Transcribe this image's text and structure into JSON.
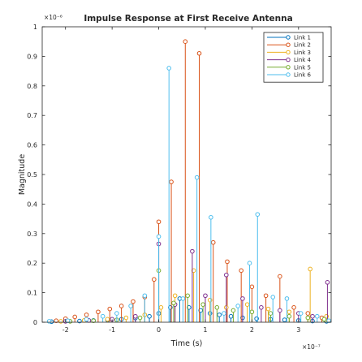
{
  "chart_data": {
    "type": "stem",
    "title": "Impulse Response at First Receive Antenna",
    "xlabel": "Time (s)",
    "ylabel": "Magnitude",
    "x_exponent_label": "×10⁻⁷",
    "y_exponent_label": "×10⁻⁶",
    "x_scale": 1e-07,
    "y_scale": 1e-06,
    "xlim": [
      -2.5,
      3.7
    ],
    "ylim": [
      0,
      1
    ],
    "x_ticks": [
      -2,
      -1,
      0,
      1,
      2,
      3
    ],
    "y_ticks": [
      0,
      0.1,
      0.2,
      0.3,
      0.4,
      0.5,
      0.6,
      0.7,
      0.8,
      0.9,
      1
    ],
    "grid": false,
    "legend_position": "top-right",
    "series": [
      {
        "name": "Link 1",
        "color": "#0072BD",
        "points": [
          [
            -2.3,
            0.002
          ],
          [
            -2.0,
            0.004
          ],
          [
            -1.7,
            0.004
          ],
          [
            -1.4,
            0.006
          ],
          [
            -1.1,
            0.008
          ],
          [
            -0.8,
            0.01
          ],
          [
            -0.5,
            0.014
          ],
          [
            -0.2,
            0.02
          ],
          [
            0.0,
            0.03
          ],
          [
            0.25,
            0.05
          ],
          [
            0.45,
            0.08
          ],
          [
            0.65,
            0.05
          ],
          [
            0.9,
            0.04
          ],
          [
            1.1,
            0.03
          ],
          [
            1.3,
            0.025
          ],
          [
            1.55,
            0.02
          ],
          [
            1.8,
            0.015
          ],
          [
            2.1,
            0.012
          ],
          [
            2.4,
            0.01
          ],
          [
            2.7,
            0.008
          ],
          [
            3.0,
            0.006
          ],
          [
            3.3,
            0.004
          ],
          [
            3.6,
            0.003
          ]
        ]
      },
      {
        "name": "Link 2",
        "color": "#D95319",
        "points": [
          [
            -2.2,
            0.005
          ],
          [
            -2.0,
            0.012
          ],
          [
            -1.8,
            0.018
          ],
          [
            -1.55,
            0.025
          ],
          [
            -1.3,
            0.035
          ],
          [
            -1.05,
            0.045
          ],
          [
            -0.8,
            0.055
          ],
          [
            -0.55,
            0.07
          ],
          [
            -0.3,
            0.085
          ],
          [
            -0.1,
            0.145
          ],
          [
            0.0,
            0.34
          ],
          [
            0.27,
            0.475
          ],
          [
            0.57,
            0.95
          ],
          [
            0.87,
            0.91
          ],
          [
            1.17,
            0.27
          ],
          [
            1.47,
            0.205
          ],
          [
            1.77,
            0.175
          ],
          [
            2.0,
            0.12
          ],
          [
            2.3,
            0.09
          ],
          [
            2.6,
            0.155
          ],
          [
            2.9,
            0.05
          ],
          [
            3.2,
            0.03
          ],
          [
            3.5,
            0.015
          ]
        ]
      },
      {
        "name": "Link 3",
        "color": "#EDB120",
        "points": [
          [
            -2.1,
            0.003
          ],
          [
            -1.6,
            0.006
          ],
          [
            -1.1,
            0.01
          ],
          [
            -0.7,
            0.015
          ],
          [
            -0.3,
            0.025
          ],
          [
            0.05,
            0.05
          ],
          [
            0.35,
            0.09
          ],
          [
            0.75,
            0.175
          ],
          [
            1.1,
            0.075
          ],
          [
            1.45,
            0.05
          ],
          [
            1.9,
            0.06
          ],
          [
            2.35,
            0.045
          ],
          [
            2.8,
            0.035
          ],
          [
            3.25,
            0.18
          ],
          [
            3.6,
            0.02
          ]
        ]
      },
      {
        "name": "Link 4",
        "color": "#7E2F8E",
        "points": [
          [
            -2.0,
            0.003
          ],
          [
            -1.5,
            0.006
          ],
          [
            -1.0,
            0.01
          ],
          [
            -0.5,
            0.02
          ],
          [
            0.0,
            0.265
          ],
          [
            0.35,
            0.06
          ],
          [
            0.72,
            0.24
          ],
          [
            1.0,
            0.09
          ],
          [
            1.45,
            0.16
          ],
          [
            1.8,
            0.08
          ],
          [
            2.2,
            0.05
          ],
          [
            2.6,
            0.04
          ],
          [
            3.0,
            0.03
          ],
          [
            3.3,
            0.02
          ],
          [
            3.62,
            0.135
          ]
        ]
      },
      {
        "name": "Link 5",
        "color": "#77AC30",
        "points": [
          [
            -1.9,
            0.003
          ],
          [
            -1.4,
            0.005
          ],
          [
            -0.9,
            0.008
          ],
          [
            -0.4,
            0.015
          ],
          [
            0.0,
            0.175
          ],
          [
            0.32,
            0.065
          ],
          [
            0.62,
            0.09
          ],
          [
            0.95,
            0.06
          ],
          [
            1.25,
            0.05
          ],
          [
            1.6,
            0.04
          ],
          [
            2.0,
            0.035
          ],
          [
            2.4,
            0.03
          ],
          [
            2.8,
            0.02
          ],
          [
            3.2,
            0.015
          ],
          [
            3.55,
            0.01
          ]
        ]
      },
      {
        "name": "Link 6",
        "color": "#4DBEEE",
        "points": [
          [
            -2.35,
            0.003
          ],
          [
            -1.95,
            0.005
          ],
          [
            -1.55,
            0.01
          ],
          [
            -1.2,
            0.02
          ],
          [
            -0.9,
            0.03
          ],
          [
            -0.6,
            0.055
          ],
          [
            -0.3,
            0.09
          ],
          [
            0.0,
            0.29
          ],
          [
            0.22,
            0.86
          ],
          [
            0.52,
            0.08
          ],
          [
            0.82,
            0.49
          ],
          [
            1.12,
            0.355
          ],
          [
            1.4,
            0.03
          ],
          [
            1.7,
            0.055
          ],
          [
            1.95,
            0.2
          ],
          [
            2.12,
            0.365
          ],
          [
            2.45,
            0.085
          ],
          [
            2.75,
            0.08
          ],
          [
            3.05,
            0.03
          ],
          [
            3.4,
            0.02
          ],
          [
            3.65,
            0.005
          ]
        ]
      }
    ]
  }
}
